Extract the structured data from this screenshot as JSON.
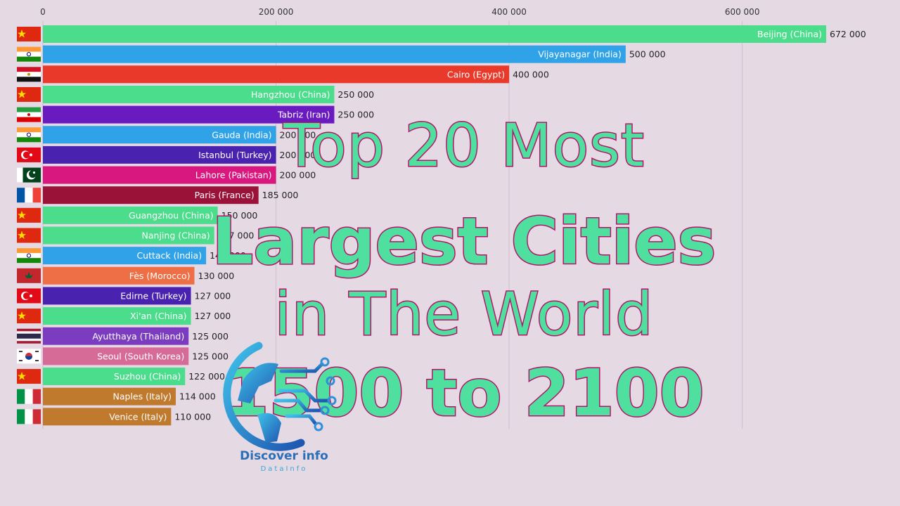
{
  "chart_data": {
    "type": "bar",
    "orientation": "horizontal",
    "xlim": [
      0,
      672000
    ],
    "ticks": [
      {
        "value": 0,
        "label": "0"
      },
      {
        "value": 200000,
        "label": "200 000"
      },
      {
        "value": 400000,
        "label": "400 000"
      },
      {
        "value": 600000,
        "label": "600 000"
      }
    ],
    "bars": [
      {
        "label": "Beijing (China)",
        "value": 672000,
        "value_label": "672 000",
        "color": "#4cdd8c",
        "flag": "china"
      },
      {
        "label": "Vijayanagar (India)",
        "value": 500000,
        "value_label": "500 000",
        "color": "#30a3e8",
        "flag": "india"
      },
      {
        "label": "Cairo (Egypt)",
        "value": 400000,
        "value_label": "400 000",
        "color": "#e8392a",
        "flag": "egypt"
      },
      {
        "label": "Hangzhou (China)",
        "value": 250000,
        "value_label": "250 000",
        "color": "#4cdd8c",
        "flag": "china"
      },
      {
        "label": "Tabriz (Iran)",
        "value": 250000,
        "value_label": "250 000",
        "color": "#6a1bc0",
        "flag": "iran"
      },
      {
        "label": "Gauda (India)",
        "value": 200000,
        "value_label": "200 000",
        "color": "#30a3e8",
        "flag": "india"
      },
      {
        "label": "Istanbul (Turkey)",
        "value": 200000,
        "value_label": "200 000",
        "color": "#4a22b0",
        "flag": "turkey"
      },
      {
        "label": "Lahore (Pakistan)",
        "value": 200000,
        "value_label": "200 000",
        "color": "#d8187e",
        "flag": "pakistan"
      },
      {
        "label": "Paris (France)",
        "value": 185000,
        "value_label": "185 000",
        "color": "#9a1238",
        "flag": "france"
      },
      {
        "label": "Guangzhou (China)",
        "value": 150000,
        "value_label": "150 000",
        "color": "#4cdd8c",
        "flag": "china"
      },
      {
        "label": "Nanjing (China)",
        "value": 147000,
        "value_label": "147 000",
        "color": "#4cdd8c",
        "flag": "china"
      },
      {
        "label": "Cuttack (India)",
        "value": 140000,
        "value_label": "140 000",
        "color": "#30a3e8",
        "flag": "india"
      },
      {
        "label": "Fès (Morocco)",
        "value": 130000,
        "value_label": "130 000",
        "color": "#ee6f45",
        "flag": "morocco"
      },
      {
        "label": "Edirne (Turkey)",
        "value": 127000,
        "value_label": "127 000",
        "color": "#4a22b0",
        "flag": "turkey"
      },
      {
        "label": "Xi'an (China)",
        "value": 127000,
        "value_label": "127 000",
        "color": "#4cdd8c",
        "flag": "china"
      },
      {
        "label": "Ayutthaya (Thailand)",
        "value": 125000,
        "value_label": "125 000",
        "color": "#7b3cc0",
        "flag": "thailand"
      },
      {
        "label": "Seoul (South Korea)",
        "value": 125000,
        "value_label": "125 000",
        "color": "#d66b97",
        "flag": "south-korea"
      },
      {
        "label": "Suzhou (China)",
        "value": 122000,
        "value_label": "122 000",
        "color": "#4cdd8c",
        "flag": "china"
      },
      {
        "label": "Naples (Italy)",
        "value": 114000,
        "value_label": "114 000",
        "color": "#c07a2e",
        "flag": "italy"
      },
      {
        "label": "Venice (Italy)",
        "value": 110000,
        "value_label": "110 000",
        "color": "#c07a2e",
        "flag": "italy"
      }
    ]
  },
  "overlay": {
    "title_line_1": "Top 20 Most",
    "title_line_2": "Largest Cities",
    "title_line_3": "in The World",
    "title_line_4": "1500 to 2100",
    "logo_name": "Discover info",
    "logo_sub": "DataInfo"
  }
}
